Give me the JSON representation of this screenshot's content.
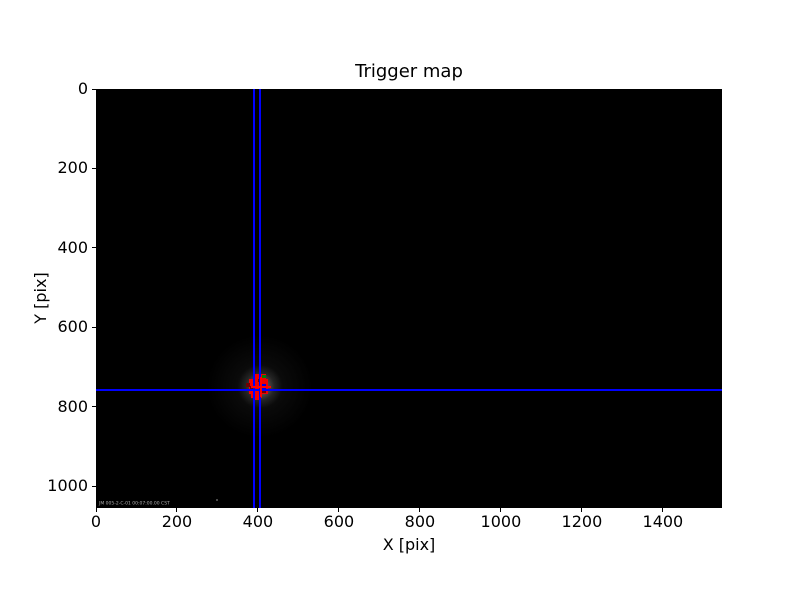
{
  "figure": {
    "title": "Trigger map",
    "xlabel": "X [pix]",
    "ylabel": "Y [pix]",
    "timestamp_overlay": "JM 005-2-C-01 00:07:00.00 CST"
  },
  "palette": {
    "red": "#f00000",
    "dark_red": "#700000",
    "green": "#008000",
    "blue": "#0000e8",
    "line_blue": "#0000ff",
    "cross_red": "#ff0000",
    "plot_bg": "#000000",
    "page_bg": "#ffffff",
    "faint_dot": "#666666"
  },
  "chart_data": {
    "type": "heatmap",
    "title": "Trigger map",
    "xlabel": "X [pix]",
    "ylabel": "Y [pix]",
    "xlim": [
      0,
      1546
    ],
    "ylim": [
      0,
      1055
    ],
    "y_axis_inverted": true,
    "x_ticks": [
      0,
      200,
      400,
      600,
      800,
      1000,
      1200,
      1400
    ],
    "y_ticks": [
      0,
      200,
      400,
      600,
      800,
      1000
    ],
    "description": "Mostly-black camera trigger map image; bright triggered-pixel cluster near (405, 748) with faint PSF glow; blue crosshair guide lines mark the source position",
    "crosshair": {
      "vlines_x": [
        391,
        404
      ],
      "hline_y": 759
    },
    "cross_marker": {
      "x": 407,
      "y": 750,
      "arm_x": 25,
      "arm_y": 25
    },
    "glows": [
      {
        "cx": 405,
        "cy": 750,
        "rx": 130,
        "ry": 130,
        "kind": "outer"
      },
      {
        "cx": 405,
        "cy": 749,
        "rx": 55,
        "ry": 55,
        "kind": "core"
      }
    ],
    "cluster_cells": [
      {
        "x": 388,
        "y": 717,
        "w": 32,
        "h": 14,
        "c": "red"
      },
      {
        "x": 378,
        "y": 730,
        "w": 47,
        "h": 37,
        "c": "red"
      },
      {
        "x": 384,
        "y": 766,
        "w": 26,
        "h": 11,
        "c": "red"
      },
      {
        "x": 393,
        "y": 776,
        "w": 10,
        "h": 6,
        "c": "red"
      },
      {
        "x": 370,
        "y": 740,
        "w": 11,
        "h": 11,
        "c": "dark_red"
      },
      {
        "x": 399,
        "y": 729,
        "w": 11,
        "h": 9,
        "c": "dark_red"
      },
      {
        "x": 380,
        "y": 748,
        "w": 13,
        "h": 13,
        "c": "dark_red"
      },
      {
        "x": 409,
        "y": 757,
        "w": 11,
        "h": 9,
        "c": "dark_red"
      },
      {
        "x": 411,
        "y": 719,
        "w": 9,
        "h": 9,
        "c": "green"
      },
      {
        "x": 404,
        "y": 744,
        "w": 16,
        "h": 14,
        "c": "blue"
      }
    ],
    "faint_dot": {
      "x": 296,
      "y": 1033
    }
  }
}
